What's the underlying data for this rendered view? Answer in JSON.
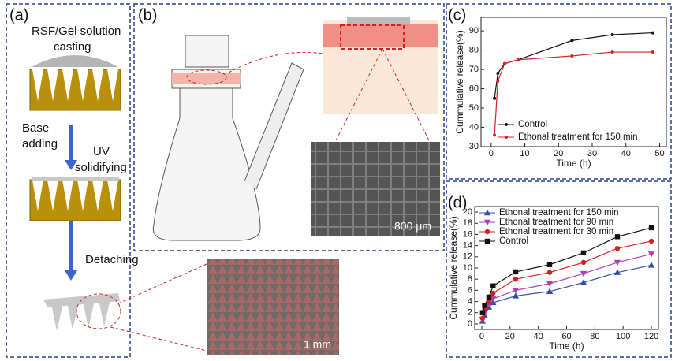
{
  "figure": {
    "panel_labels": [
      "(a)",
      "(b)",
      "(c)",
      "(d)"
    ],
    "steps": [
      "RSF/Gel solution",
      "casting",
      "Base",
      "adding",
      "UV",
      "solidifying",
      "Detaching"
    ],
    "scale_bars": [
      "800 μm",
      "1 mm"
    ]
  },
  "chart_data": [
    {
      "type": "line",
      "xlabel": "Time (h)",
      "ylabel": "Cummulative release(%)",
      "x": [
        1,
        2,
        4,
        8,
        24,
        36,
        48
      ],
      "xlim": [
        -3,
        52
      ],
      "ylim": [
        30,
        97
      ],
      "xticks": [
        0,
        10,
        20,
        30,
        40,
        50
      ],
      "yticks": [
        30,
        40,
        50,
        60,
        70,
        80,
        90
      ],
      "legend": "lower-right",
      "series": [
        {
          "name": "Control",
          "color": "#111111",
          "marker": "dot",
          "values": [
            55,
            68,
            73,
            75,
            85,
            88,
            89
          ]
        },
        {
          "name": "Ethonal treatment for 150 min",
          "color": "#d42020",
          "marker": "dot",
          "values": [
            36,
            64,
            73,
            75,
            77,
            79,
            79
          ]
        }
      ]
    },
    {
      "type": "line",
      "xlabel": "Time (h)",
      "ylabel": "Cummulative release(%)",
      "x": [
        0.5,
        2,
        5,
        8,
        24,
        48,
        72,
        96,
        120
      ],
      "xlim": [
        -5,
        125
      ],
      "ylim": [
        -1,
        21
      ],
      "xticks": [
        0,
        20,
        40,
        60,
        80,
        100,
        120
      ],
      "yticks": [
        0,
        2,
        4,
        6,
        8,
        10,
        12,
        14,
        16,
        18,
        20
      ],
      "legend": "upper-left",
      "series": [
        {
          "name": "Ethonal treatment for 150 min",
          "color": "#3050a8",
          "marker": "triangle-up",
          "values": [
            0.5,
            1.5,
            3,
            3.8,
            5,
            5.8,
            7.4,
            9.2,
            10.5
          ]
        },
        {
          "name": "Ethonal treatment for 90 min",
          "color": "#b040b0",
          "marker": "triangle-down",
          "values": [
            0.8,
            2,
            3.5,
            4.5,
            6,
            7.2,
            9,
            11,
            12.5
          ]
        },
        {
          "name": "Ethonal treatment for 30 min",
          "color": "#d42020",
          "marker": "circle",
          "values": [
            1,
            2.5,
            4,
            5.5,
            8,
            9.2,
            11,
            13.5,
            14.8
          ]
        },
        {
          "name": "Control",
          "color": "#111111",
          "marker": "square",
          "values": [
            2,
            3.3,
            4.8,
            6.8,
            9.3,
            10.6,
            12.7,
            15.6,
            17.2
          ]
        }
      ]
    }
  ]
}
